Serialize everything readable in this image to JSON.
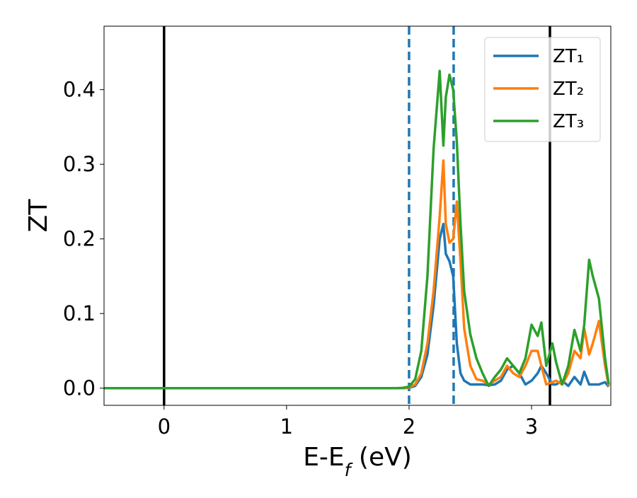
{
  "chart_data": {
    "type": "line",
    "xlabel": [
      "E-E",
      "f",
      " (eV)"
    ],
    "ylabel": "ZT",
    "x": [
      -0.5,
      1.8,
      1.9,
      1.95,
      2.0,
      2.05,
      2.1,
      2.15,
      2.2,
      2.25,
      2.28,
      2.3,
      2.33,
      2.36,
      2.39,
      2.42,
      2.45,
      2.5,
      2.55,
      2.6,
      2.65,
      2.7,
      2.75,
      2.8,
      2.85,
      2.9,
      2.95,
      3.0,
      3.05,
      3.08,
      3.12,
      3.17,
      3.2,
      3.25,
      3.3,
      3.35,
      3.4,
      3.43,
      3.47,
      3.5,
      3.55,
      3.6,
      3.63
    ],
    "series": [
      {
        "name": "ZT₁",
        "color": "#1f77b4",
        "values": [
          0,
          0,
          0,
          0,
          0.0005,
          0.003,
          0.015,
          0.045,
          0.11,
          0.2,
          0.22,
          0.18,
          0.17,
          0.15,
          0.06,
          0.02,
          0.01,
          0.005,
          0.005,
          0.005,
          0.004,
          0.005,
          0.01,
          0.025,
          0.03,
          0.02,
          0.005,
          0.01,
          0.02,
          0.03,
          0.02,
          0.005,
          0.005,
          0.01,
          0.003,
          0.015,
          0.005,
          0.022,
          0.005,
          0.005,
          0.005,
          0.008,
          0.002
        ]
      },
      {
        "name": "ZT₂",
        "color": "#ff7f0e",
        "values": [
          0,
          0,
          0,
          0,
          0.001,
          0.005,
          0.02,
          0.06,
          0.13,
          0.23,
          0.305,
          0.22,
          0.195,
          0.2,
          0.25,
          0.17,
          0.08,
          0.03,
          0.012,
          0.01,
          0.005,
          0.01,
          0.015,
          0.03,
          0.02,
          0.015,
          0.03,
          0.05,
          0.05,
          0.03,
          0.005,
          0.008,
          0.01,
          0.005,
          0.02,
          0.05,
          0.04,
          0.08,
          0.045,
          0.06,
          0.09,
          0.03,
          0.003
        ]
      },
      {
        "name": "ZT₃",
        "color": "#2ca02c",
        "values": [
          0,
          0,
          0,
          0.0005,
          0.002,
          0.012,
          0.05,
          0.15,
          0.32,
          0.425,
          0.325,
          0.39,
          0.42,
          0.4,
          0.33,
          0.22,
          0.13,
          0.072,
          0.04,
          0.02,
          0.003,
          0.015,
          0.025,
          0.04,
          0.03,
          0.02,
          0.04,
          0.085,
          0.07,
          0.088,
          0.03,
          0.06,
          0.035,
          0.005,
          0.03,
          0.078,
          0.05,
          0.085,
          0.172,
          0.15,
          0.12,
          0.04,
          0.005
        ]
      }
    ],
    "vlines": [
      {
        "x": 0,
        "color": "#000000",
        "style": "solid"
      },
      {
        "x": 3.15,
        "color": "#000000",
        "style": "solid"
      },
      {
        "x": 2.0,
        "color": "#1f77b4",
        "style": "dashed"
      },
      {
        "x": 2.364,
        "color": "#1f77b4",
        "style": "dashed"
      }
    ],
    "xlim": [
      -0.49,
      3.647
    ],
    "ylim": [
      -0.023,
      0.485
    ],
    "xticks": [
      0,
      1,
      2,
      3
    ],
    "yticks": [
      {
        "value": 0,
        "label": "0.0"
      },
      0.1,
      0.2,
      0.3,
      0.4
    ],
    "legend": "upper right"
  }
}
